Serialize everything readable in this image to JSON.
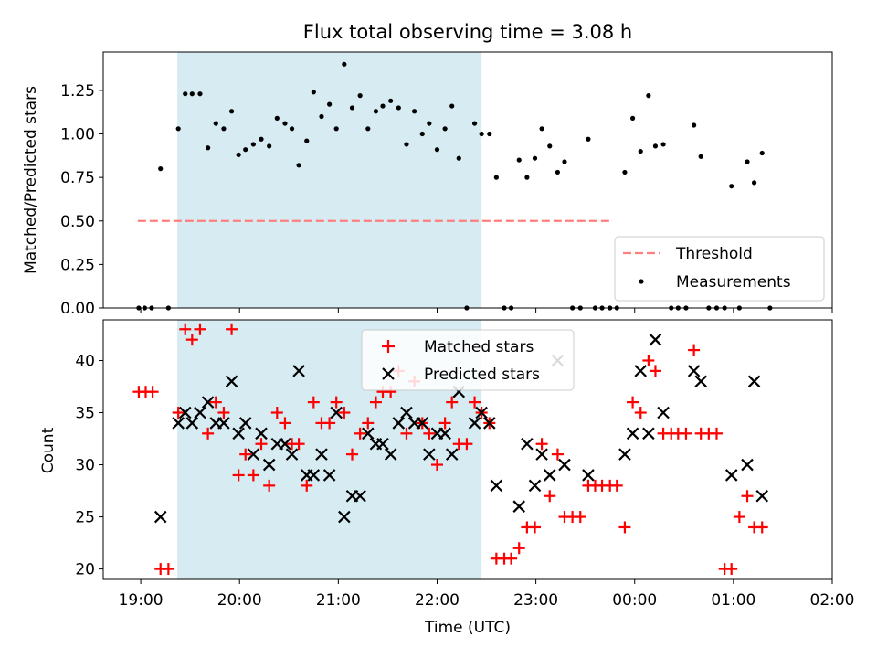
{
  "chart_data": {
    "title": "Flux total observing time = 3.08 h",
    "xlabel": "Time (UTC)",
    "x_unit": "hours since 19:00 UTC",
    "xticks": [
      "19:00",
      "20:00",
      "21:00",
      "22:00",
      "23:00",
      "00:00",
      "01:00",
      "02:00"
    ],
    "shaded_region": {
      "x": [
        0.37,
        3.45
      ],
      "color": "#add8e6",
      "alpha": 0.5
    },
    "panels": [
      {
        "type": "scatter",
        "ylabel": "Matched/Predicted stars",
        "ylim": [
          0,
          1.47
        ],
        "yticks": [
          "0.00",
          "0.25",
          "0.50",
          "0.75",
          "1.00",
          "1.25"
        ],
        "legend_position": "lower-right",
        "threshold": {
          "name": "Threshold",
          "value": 0.5,
          "x": [
            -0.03,
            4.78
          ],
          "color": "#ff7f7f"
        },
        "series": [
          {
            "name": "Measurements",
            "color": "#000000",
            "points": [
              [
                -0.02,
                0
              ],
              [
                0.04,
                0
              ],
              [
                0.11,
                0
              ],
              [
                0.2,
                0.8
              ],
              [
                0.28,
                0
              ],
              [
                0.38,
                1.03
              ],
              [
                0.45,
                1.23
              ],
              [
                0.52,
                1.23
              ],
              [
                0.6,
                1.23
              ],
              [
                0.68,
                0.92
              ],
              [
                0.76,
                1.06
              ],
              [
                0.84,
                1.03
              ],
              [
                0.92,
                1.13
              ],
              [
                0.99,
                0.88
              ],
              [
                1.06,
                0.91
              ],
              [
                1.14,
                0.94
              ],
              [
                1.22,
                0.97
              ],
              [
                1.3,
                0.93
              ],
              [
                1.38,
                1.09
              ],
              [
                1.46,
                1.06
              ],
              [
                1.53,
                1.03
              ],
              [
                1.6,
                0.82
              ],
              [
                1.68,
                0.96
              ],
              [
                1.75,
                1.24
              ],
              [
                1.83,
                1.1
              ],
              [
                1.91,
                1.17
              ],
              [
                1.98,
                1.03
              ],
              [
                2.06,
                1.4
              ],
              [
                2.14,
                1.15
              ],
              [
                2.22,
                1.22
              ],
              [
                2.3,
                1.03
              ],
              [
                2.38,
                1.13
              ],
              [
                2.45,
                1.16
              ],
              [
                2.53,
                1.19
              ],
              [
                2.61,
                1.15
              ],
              [
                2.69,
                0.94
              ],
              [
                2.77,
                1.13
              ],
              [
                2.85,
                1.0
              ],
              [
                2.92,
                1.06
              ],
              [
                3.0,
                0.91
              ],
              [
                3.08,
                1.03
              ],
              [
                3.15,
                1.16
              ],
              [
                3.22,
                0.86
              ],
              [
                3.3,
                0
              ],
              [
                3.38,
                1.06
              ],
              [
                3.45,
                1.0
              ],
              [
                3.53,
                1.0
              ],
              [
                3.6,
                0.75
              ],
              [
                3.68,
                0
              ],
              [
                3.75,
                0
              ],
              [
                3.83,
                0.85
              ],
              [
                3.91,
                0.75
              ],
              [
                3.99,
                0.86
              ],
              [
                4.06,
                1.03
              ],
              [
                4.14,
                0.93
              ],
              [
                4.22,
                0.78
              ],
              [
                4.29,
                0.84
              ],
              [
                4.37,
                0
              ],
              [
                4.45,
                0
              ],
              [
                4.53,
                0.97
              ],
              [
                4.6,
                0
              ],
              [
                4.67,
                0
              ],
              [
                4.75,
                0
              ],
              [
                4.82,
                0
              ],
              [
                4.9,
                0.78
              ],
              [
                4.98,
                1.09
              ],
              [
                5.06,
                0.9
              ],
              [
                5.14,
                1.22
              ],
              [
                5.21,
                0.93
              ],
              [
                5.29,
                0.94
              ],
              [
                5.37,
                0
              ],
              [
                5.44,
                0
              ],
              [
                5.52,
                0
              ],
              [
                5.6,
                1.05
              ],
              [
                5.67,
                0.87
              ],
              [
                5.75,
                0
              ],
              [
                5.83,
                0
              ],
              [
                5.91,
                0
              ],
              [
                5.98,
                0.7
              ],
              [
                6.06,
                0
              ],
              [
                6.14,
                0.84
              ],
              [
                6.21,
                0.72
              ],
              [
                6.29,
                0.89
              ],
              [
                6.37,
                0
              ]
            ]
          }
        ]
      },
      {
        "type": "scatter",
        "ylabel": "Count",
        "ylim": [
          19,
          43.9
        ],
        "yticks": [
          "20",
          "25",
          "30",
          "35",
          "40"
        ],
        "legend_position": "top-center",
        "series": [
          {
            "name": "Matched stars",
            "color": "#ff0000",
            "marker": "+",
            "points": [
              [
                -0.02,
                37
              ],
              [
                0.05,
                37
              ],
              [
                0.12,
                37
              ],
              [
                0.2,
                20
              ],
              [
                0.28,
                20
              ],
              [
                0.38,
                35
              ],
              [
                0.45,
                43
              ],
              [
                0.52,
                42
              ],
              [
                0.6,
                43
              ],
              [
                0.68,
                33
              ],
              [
                0.76,
                36
              ],
              [
                0.84,
                35
              ],
              [
                0.92,
                43
              ],
              [
                0.99,
                29
              ],
              [
                1.06,
                31
              ],
              [
                1.14,
                29
              ],
              [
                1.22,
                32
              ],
              [
                1.3,
                28
              ],
              [
                1.38,
                35
              ],
              [
                1.46,
                34
              ],
              [
                1.53,
                32
              ],
              [
                1.6,
                32
              ],
              [
                1.68,
                28
              ],
              [
                1.75,
                36
              ],
              [
                1.83,
                34
              ],
              [
                1.91,
                34
              ],
              [
                1.98,
                36
              ],
              [
                2.06,
                35
              ],
              [
                2.14,
                31
              ],
              [
                2.22,
                33
              ],
              [
                2.3,
                34
              ],
              [
                2.38,
                36
              ],
              [
                2.45,
                37
              ],
              [
                2.53,
                37
              ],
              [
                2.61,
                39
              ],
              [
                2.69,
                33
              ],
              [
                2.77,
                38
              ],
              [
                2.85,
                34
              ],
              [
                2.92,
                33
              ],
              [
                3.0,
                30
              ],
              [
                3.08,
                34
              ],
              [
                3.15,
                36
              ],
              [
                3.22,
                32
              ],
              [
                3.3,
                32
              ],
              [
                3.38,
                36
              ],
              [
                3.45,
                35
              ],
              [
                3.53,
                34
              ],
              [
                3.6,
                21
              ],
              [
                3.68,
                21
              ],
              [
                3.75,
                21
              ],
              [
                3.83,
                22
              ],
              [
                3.91,
                24
              ],
              [
                3.99,
                24
              ],
              [
                4.06,
                32
              ],
              [
                4.14,
                27
              ],
              [
                4.22,
                31
              ],
              [
                4.29,
                25
              ],
              [
                4.37,
                25
              ],
              [
                4.45,
                25
              ],
              [
                4.53,
                28
              ],
              [
                4.6,
                28
              ],
              [
                4.67,
                28
              ],
              [
                4.75,
                28
              ],
              [
                4.82,
                28
              ],
              [
                4.9,
                24
              ],
              [
                4.98,
                36
              ],
              [
                5.06,
                35
              ],
              [
                5.14,
                40
              ],
              [
                5.21,
                39
              ],
              [
                5.29,
                33
              ],
              [
                5.37,
                33
              ],
              [
                5.44,
                33
              ],
              [
                5.52,
                33
              ],
              [
                5.6,
                41
              ],
              [
                5.67,
                33
              ],
              [
                5.75,
                33
              ],
              [
                5.83,
                33
              ],
              [
                5.91,
                20
              ],
              [
                5.98,
                20
              ],
              [
                6.06,
                25
              ],
              [
                6.14,
                27
              ],
              [
                6.21,
                24
              ],
              [
                6.29,
                24
              ]
            ]
          },
          {
            "name": "Predicted stars",
            "color": "#000000",
            "marker": "x",
            "points": [
              [
                0.2,
                25
              ],
              [
                0.38,
                34
              ],
              [
                0.45,
                35
              ],
              [
                0.52,
                34
              ],
              [
                0.6,
                35
              ],
              [
                0.68,
                36
              ],
              [
                0.76,
                34
              ],
              [
                0.84,
                34
              ],
              [
                0.92,
                38
              ],
              [
                0.99,
                33
              ],
              [
                1.06,
                34
              ],
              [
                1.14,
                31
              ],
              [
                1.22,
                33
              ],
              [
                1.3,
                30
              ],
              [
                1.38,
                32
              ],
              [
                1.46,
                32
              ],
              [
                1.53,
                31
              ],
              [
                1.6,
                39
              ],
              [
                1.68,
                29
              ],
              [
                1.75,
                29
              ],
              [
                1.83,
                31
              ],
              [
                1.91,
                29
              ],
              [
                1.98,
                35
              ],
              [
                2.06,
                25
              ],
              [
                2.14,
                27
              ],
              [
                2.22,
                27
              ],
              [
                2.3,
                33
              ],
              [
                2.38,
                32
              ],
              [
                2.45,
                32
              ],
              [
                2.53,
                31
              ],
              [
                2.61,
                34
              ],
              [
                2.69,
                35
              ],
              [
                2.77,
                34
              ],
              [
                2.85,
                34
              ],
              [
                2.92,
                31
              ],
              [
                3.0,
                33
              ],
              [
                3.08,
                33
              ],
              [
                3.15,
                31
              ],
              [
                3.22,
                37
              ],
              [
                3.38,
                34
              ],
              [
                3.45,
                35
              ],
              [
                3.53,
                34
              ],
              [
                3.6,
                28
              ],
              [
                3.83,
                26
              ],
              [
                3.91,
                32
              ],
              [
                3.99,
                28
              ],
              [
                4.06,
                31
              ],
              [
                4.14,
                29
              ],
              [
                4.22,
                40
              ],
              [
                4.29,
                30
              ],
              [
                4.53,
                29
              ],
              [
                4.9,
                31
              ],
              [
                4.98,
                33
              ],
              [
                5.06,
                39
              ],
              [
                5.14,
                33
              ],
              [
                5.21,
                42
              ],
              [
                5.29,
                35
              ],
              [
                5.6,
                39
              ],
              [
                5.67,
                38
              ],
              [
                5.98,
                29
              ],
              [
                6.14,
                30
              ],
              [
                6.21,
                38
              ],
              [
                6.29,
                27
              ]
            ]
          }
        ]
      }
    ]
  }
}
